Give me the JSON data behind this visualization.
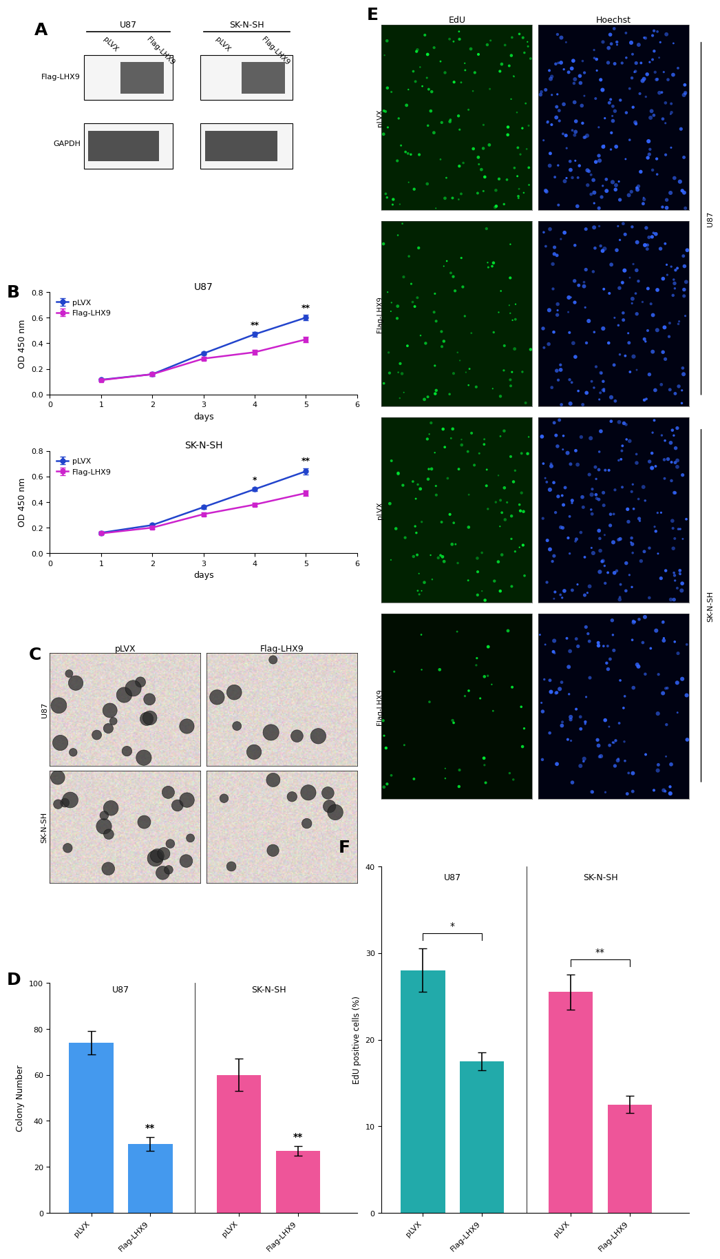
{
  "panel_label_fontsize": 18,
  "panel_label_fontweight": "bold",
  "cck8_u87": {
    "title": "U87",
    "xlabel": "days",
    "ylabel": "OD 450 nm",
    "xlim": [
      0,
      6
    ],
    "ylim": [
      0.0,
      0.8
    ],
    "yticks": [
      0.0,
      0.2,
      0.4,
      0.6,
      0.8
    ],
    "xticks": [
      0,
      1,
      2,
      3,
      4,
      5,
      6
    ],
    "days": [
      1,
      2,
      3,
      4,
      5
    ],
    "plvx_mean": [
      0.115,
      0.158,
      0.32,
      0.47,
      0.6
    ],
    "plvx_err": [
      0.008,
      0.012,
      0.012,
      0.018,
      0.022
    ],
    "flag_mean": [
      0.112,
      0.158,
      0.28,
      0.33,
      0.43
    ],
    "flag_err": [
      0.008,
      0.012,
      0.012,
      0.018,
      0.022
    ],
    "sig_days": [
      4,
      5
    ],
    "sig_labels": [
      "**",
      "**"
    ],
    "plvx_color": "#2244cc",
    "flag_color": "#cc22cc",
    "legend_plvx": "pLVX",
    "legend_flag": "Flag-LHX9"
  },
  "cck8_sknsh": {
    "title": "SK-N-SH",
    "xlabel": "days",
    "ylabel": "OD 450 nm",
    "xlim": [
      0,
      6
    ],
    "ylim": [
      0.0,
      0.8
    ],
    "yticks": [
      0.0,
      0.2,
      0.4,
      0.6,
      0.8
    ],
    "xticks": [
      0,
      1,
      2,
      3,
      4,
      5,
      6
    ],
    "days": [
      1,
      2,
      3,
      4,
      5
    ],
    "plvx_mean": [
      0.16,
      0.22,
      0.36,
      0.5,
      0.64
    ],
    "plvx_err": [
      0.008,
      0.012,
      0.015,
      0.015,
      0.025
    ],
    "flag_mean": [
      0.155,
      0.2,
      0.305,
      0.38,
      0.47
    ],
    "flag_err": [
      0.008,
      0.012,
      0.015,
      0.015,
      0.022
    ],
    "sig_days": [
      4,
      5
    ],
    "sig_labels": [
      "*",
      "**"
    ],
    "plvx_color": "#2244cc",
    "flag_color": "#cc22cc",
    "legend_plvx": "pLVX",
    "legend_flag": "Flag-LHX9"
  },
  "colony_panel": {
    "categories": [
      "pLVX",
      "Flag-LHX9",
      "pLVX",
      "Flag-LHX9"
    ],
    "values": [
      74,
      30,
      60,
      27
    ],
    "errors": [
      5,
      3,
      7,
      2
    ],
    "colors": [
      "#4499ee",
      "#4499ee",
      "#ee5599",
      "#ee5599"
    ],
    "sig_labels": [
      "",
      "**",
      "",
      "**"
    ],
    "ylabel": "Colony Number",
    "ylim": [
      0,
      100
    ],
    "yticks": [
      0,
      20,
      40,
      60,
      80,
      100
    ],
    "group_labels": [
      "U87",
      "SK-N-SH"
    ]
  },
  "edu_panel": {
    "categories": [
      "pLVX",
      "Flag-LHX9",
      "pLVX",
      "Flag-LHX9"
    ],
    "values": [
      28,
      17.5,
      25.5,
      12.5
    ],
    "errors": [
      2.5,
      1.0,
      2.0,
      1.0
    ],
    "colors": [
      "#22aaaa",
      "#22aaaa",
      "#ee5599",
      "#ee5599"
    ],
    "sig_labels_bracket": [
      "*",
      "**"
    ],
    "ylabel": "EdU positive cells (%)",
    "ylim": [
      0,
      40
    ],
    "yticks": [
      0,
      10,
      20,
      30,
      40
    ],
    "group_labels": [
      "U87",
      "SK-N-SH"
    ]
  }
}
